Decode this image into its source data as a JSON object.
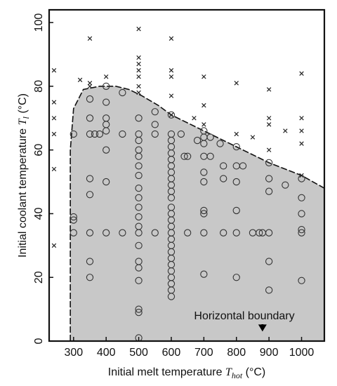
{
  "chart_data": {
    "type": "scatter",
    "xlabel": "Initial melt temperature",
    "xlabel_symbol": "T",
    "xlabel_subscript": "hot",
    "xlabel_unit": "(°C)",
    "ylabel": "Initial coolant temperature",
    "ylabel_symbol": "T",
    "ylabel_subscript": "l",
    "ylabel_unit": "(°C)",
    "xlim": [
      225,
      1070
    ],
    "ylim": [
      0,
      104
    ],
    "xticks": [
      300,
      400,
      500,
      600,
      700,
      800,
      900,
      1000
    ],
    "yticks": [
      0,
      20,
      40,
      60,
      80,
      100
    ],
    "annotation": "Horizontal boundary",
    "annotation_target": [
      880,
      3
    ],
    "grid": false,
    "region_color": "#c8c8c8",
    "region_boundary": [
      [
        290,
        0
      ],
      [
        290,
        60
      ],
      [
        300,
        73
      ],
      [
        330,
        79
      ],
      [
        380,
        80
      ],
      [
        430,
        80
      ],
      [
        470,
        79
      ],
      [
        510,
        77
      ],
      [
        560,
        74
      ],
      [
        600,
        71
      ],
      [
        700,
        66
      ],
      [
        800,
        61
      ],
      [
        900,
        56
      ],
      [
        1000,
        52
      ],
      [
        1070,
        48
      ],
      [
        1070,
        0
      ]
    ],
    "series": [
      {
        "name": "circles",
        "marker": "circle",
        "points": [
          [
            300,
            65
          ],
          [
            300,
            39
          ],
          [
            300,
            38
          ],
          [
            300,
            34
          ],
          [
            350,
            76
          ],
          [
            350,
            70
          ],
          [
            350,
            65
          ],
          [
            350,
            51
          ],
          [
            350,
            46
          ],
          [
            350,
            34
          ],
          [
            350,
            25
          ],
          [
            350,
            20
          ],
          [
            365,
            65
          ],
          [
            380,
            65
          ],
          [
            400,
            80
          ],
          [
            400,
            75
          ],
          [
            400,
            70
          ],
          [
            400,
            68
          ],
          [
            400,
            66
          ],
          [
            400,
            60
          ],
          [
            400,
            50
          ],
          [
            400,
            34
          ],
          [
            450,
            78
          ],
          [
            450,
            65
          ],
          [
            450,
            34
          ],
          [
            500,
            70
          ],
          [
            500,
            65
          ],
          [
            500,
            63
          ],
          [
            500,
            60
          ],
          [
            500,
            58
          ],
          [
            500,
            55
          ],
          [
            500,
            52
          ],
          [
            500,
            48
          ],
          [
            500,
            45
          ],
          [
            500,
            42
          ],
          [
            500,
            39
          ],
          [
            500,
            36
          ],
          [
            500,
            34
          ],
          [
            500,
            30
          ],
          [
            500,
            25
          ],
          [
            500,
            23
          ],
          [
            500,
            19
          ],
          [
            500,
            10
          ],
          [
            500,
            9
          ],
          [
            500,
            1
          ],
          [
            550,
            72
          ],
          [
            550,
            68
          ],
          [
            550,
            65
          ],
          [
            550,
            34
          ],
          [
            600,
            71
          ],
          [
            600,
            65
          ],
          [
            600,
            63
          ],
          [
            600,
            61
          ],
          [
            600,
            59
          ],
          [
            600,
            57
          ],
          [
            600,
            55
          ],
          [
            600,
            53
          ],
          [
            600,
            51
          ],
          [
            600,
            49
          ],
          [
            600,
            47
          ],
          [
            600,
            45
          ],
          [
            600,
            42
          ],
          [
            600,
            40
          ],
          [
            600,
            38
          ],
          [
            600,
            36
          ],
          [
            600,
            34
          ],
          [
            600,
            32
          ],
          [
            600,
            30
          ],
          [
            600,
            28
          ],
          [
            600,
            26
          ],
          [
            600,
            24
          ],
          [
            600,
            22
          ],
          [
            600,
            20
          ],
          [
            600,
            18
          ],
          [
            600,
            16
          ],
          [
            600,
            14
          ],
          [
            630,
            65
          ],
          [
            640,
            58
          ],
          [
            650,
            58
          ],
          [
            650,
            34
          ],
          [
            680,
            63
          ],
          [
            700,
            66
          ],
          [
            700,
            64
          ],
          [
            700,
            62
          ],
          [
            700,
            58
          ],
          [
            700,
            53
          ],
          [
            700,
            50
          ],
          [
            700,
            41
          ],
          [
            700,
            40
          ],
          [
            700,
            34
          ],
          [
            700,
            21
          ],
          [
            720,
            64
          ],
          [
            720,
            58
          ],
          [
            750,
            62
          ],
          [
            760,
            55
          ],
          [
            760,
            51
          ],
          [
            760,
            34
          ],
          [
            800,
            61
          ],
          [
            800,
            55
          ],
          [
            800,
            50
          ],
          [
            800,
            41
          ],
          [
            800,
            34
          ],
          [
            800,
            20
          ],
          [
            820,
            55
          ],
          [
            850,
            34
          ],
          [
            870,
            34
          ],
          [
            880,
            34
          ],
          [
            900,
            56
          ],
          [
            900,
            51
          ],
          [
            900,
            47
          ],
          [
            900,
            34
          ],
          [
            900,
            25
          ],
          [
            900,
            16
          ],
          [
            950,
            49
          ],
          [
            1000,
            51
          ],
          [
            1000,
            45
          ],
          [
            1000,
            40
          ],
          [
            1000,
            35
          ],
          [
            1000,
            34
          ],
          [
            1000,
            19
          ]
        ]
      },
      {
        "name": "crosses",
        "marker": "x",
        "points": [
          [
            240,
            85
          ],
          [
            240,
            75
          ],
          [
            240,
            70
          ],
          [
            240,
            65
          ],
          [
            240,
            54
          ],
          [
            240,
            30
          ],
          [
            320,
            82
          ],
          [
            350,
            95
          ],
          [
            350,
            81
          ],
          [
            350,
            80
          ],
          [
            400,
            83
          ],
          [
            500,
            98
          ],
          [
            500,
            89
          ],
          [
            500,
            87
          ],
          [
            500,
            85
          ],
          [
            500,
            83
          ],
          [
            500,
            80
          ],
          [
            500,
            78
          ],
          [
            600,
            95
          ],
          [
            600,
            85
          ],
          [
            600,
            83
          ],
          [
            600,
            77
          ],
          [
            600,
            71
          ],
          [
            670,
            70
          ],
          [
            700,
            83
          ],
          [
            700,
            74
          ],
          [
            700,
            68
          ],
          [
            800,
            81
          ],
          [
            800,
            65
          ],
          [
            850,
            64
          ],
          [
            900,
            79
          ],
          [
            900,
            70
          ],
          [
            900,
            68
          ],
          [
            900,
            60
          ],
          [
            950,
            66
          ],
          [
            1000,
            84
          ],
          [
            1000,
            70
          ],
          [
            1000,
            66
          ],
          [
            1000,
            62
          ],
          [
            1000,
            52
          ]
        ]
      }
    ]
  }
}
